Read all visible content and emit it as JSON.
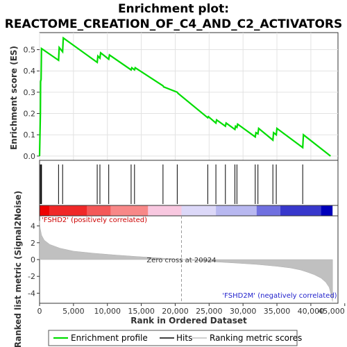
{
  "chart_data": {
    "type": "line",
    "title_line1": "Enrichment plot:",
    "title_line2": "REACTOME_CREATION_OF_C4_AND_C2_ACTIVATORS",
    "xlabel": "Rank in Ordered Dataset",
    "ylabel_top": "Enrichment score (ES)",
    "ylabel_bottom": "Ranked list metric (Signal2Noise)",
    "xlim": [
      0,
      44000
    ],
    "x_ticks": [
      0,
      5000,
      10000,
      15000,
      20000,
      25000,
      30000,
      35000,
      40000,
      45000
    ],
    "x_tick_labels": [
      "0",
      "5,000",
      "10,000",
      "15,000",
      "20,000",
      "25,000",
      "30,000",
      "35,000",
      "40,000",
      "45,000"
    ],
    "es_ylim": [
      -0.02,
      0.58
    ],
    "es_ticks": [
      0.0,
      0.1,
      0.2,
      0.3,
      0.4,
      0.5
    ],
    "es_tick_labels": [
      "0.0",
      "0.1",
      "0.2",
      "0.3",
      "0.4",
      "0.5"
    ],
    "metric_ylim": [
      -5.2,
      5.2
    ],
    "metric_ticks": [
      -4,
      -2,
      0,
      2,
      4
    ],
    "metric_tick_labels": [
      "-4",
      "-2",
      "0",
      "2",
      "4"
    ],
    "series": [
      {
        "name": "Enrichment profile",
        "color": "#00dd00",
        "x": [
          0,
          120,
          150,
          230,
          290,
          2800,
          2900,
          3400,
          3500,
          8500,
          8600,
          8900,
          9000,
          10200,
          10300,
          13500,
          13600,
          14000,
          14100,
          18200,
          18300,
          20300,
          20400,
          24800,
          24900,
          26000,
          26100,
          27400,
          27500,
          28800,
          28900,
          29100,
          29200,
          31800,
          31900,
          32200,
          32300,
          34400,
          34500,
          34900,
          35000,
          38800,
          38900,
          42900
        ],
        "y": [
          0.0,
          0.2,
          0.35,
          0.36,
          0.505,
          0.45,
          0.51,
          0.49,
          0.555,
          0.44,
          0.47,
          0.46,
          0.485,
          0.455,
          0.475,
          0.405,
          0.415,
          0.405,
          0.415,
          0.33,
          0.325,
          0.3,
          0.295,
          0.18,
          0.185,
          0.155,
          0.17,
          0.14,
          0.155,
          0.125,
          0.14,
          0.135,
          0.15,
          0.09,
          0.11,
          0.105,
          0.13,
          0.075,
          0.11,
          0.1,
          0.13,
          0.04,
          0.1,
          0.0
        ]
      },
      {
        "name": "Hits",
        "color": "#000000",
        "positions": [
          120,
          230,
          290,
          2800,
          3400,
          8500,
          8900,
          10200,
          13500,
          14000,
          18200,
          20300,
          24800,
          26000,
          27400,
          28800,
          29100,
          31800,
          32200,
          34400,
          34900,
          38800
        ]
      },
      {
        "name": "Ranking metric scores",
        "color": "#c0c0c0",
        "x": [
          0,
          100,
          300,
          700,
          1500,
          3000,
          5000,
          8000,
          11000,
          14000,
          17000,
          19500,
          20924,
          23000,
          26000,
          29000,
          32000,
          35000,
          37000,
          38500,
          39500,
          40500,
          41500,
          42200,
          42700,
          43000,
          43200
        ],
        "y": [
          4.6,
          3.7,
          2.9,
          2.3,
          1.8,
          1.35,
          1.0,
          0.75,
          0.55,
          0.38,
          0.22,
          0.08,
          0.0,
          -0.12,
          -0.28,
          -0.42,
          -0.58,
          -0.8,
          -1.0,
          -1.25,
          -1.5,
          -1.8,
          -2.2,
          -2.7,
          -3.3,
          -4.2,
          -5.0
        ]
      }
    ],
    "annotations": {
      "zero_cross_rank": 20924,
      "zero_cross_text": "Zero cross at 20924",
      "positive_text": "'FSHD2' (positively correlated)",
      "negative_text": "'FSHD2M' (negatively correlated)",
      "positive_color": "#cc0000",
      "negative_color": "#2222cc"
    },
    "color_bar": {
      "segments": [
        {
          "from": 0,
          "to": 1500,
          "color": "#ee0000"
        },
        {
          "from": 1500,
          "to": 7000,
          "color": "#f02828"
        },
        {
          "from": 7000,
          "to": 10500,
          "color": "#f45858"
        },
        {
          "from": 10500,
          "to": 16000,
          "color": "#f88888"
        },
        {
          "from": 16000,
          "to": 20924,
          "color": "#f8c8e0"
        },
        {
          "from": 20924,
          "to": 26000,
          "color": "#dcd8f8"
        },
        {
          "from": 26000,
          "to": 32000,
          "color": "#b8b8f0"
        },
        {
          "from": 32000,
          "to": 35500,
          "color": "#7070e0"
        },
        {
          "from": 35500,
          "to": 41500,
          "color": "#3838cc"
        },
        {
          "from": 41500,
          "to": 43200,
          "color": "#0000bb"
        }
      ]
    },
    "legend": {
      "placement": "bottom",
      "items": [
        {
          "label": "Enrichment profile",
          "color": "#00dd00"
        },
        {
          "label": "Hits",
          "color": "#000000"
        },
        {
          "label": "Ranking metric scores",
          "color": "#c0c0c0"
        }
      ]
    }
  }
}
